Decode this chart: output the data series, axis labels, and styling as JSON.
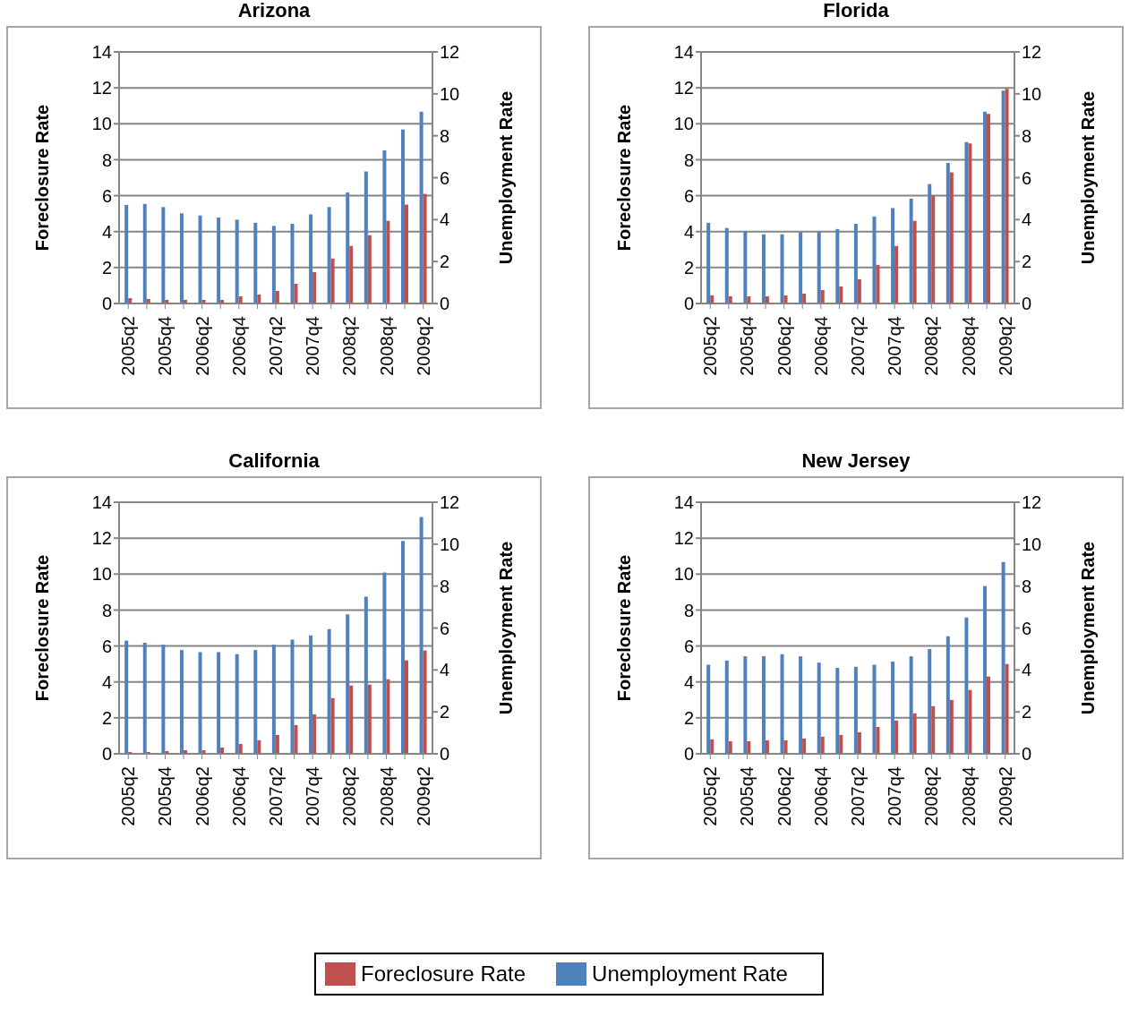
{
  "chart_data": [
    {
      "type": "bar",
      "title": "Arizona",
      "xlabel": null,
      "ylabel": "Foreclosure Rate",
      "y2label": "Unemployment Rate",
      "categories": [
        "2005q2",
        null,
        "2005q4",
        null,
        "2006q2",
        null,
        "2006q4",
        null,
        "2007q2",
        null,
        "2007q4",
        null,
        "2008q2",
        null,
        "2008q4",
        null,
        "2009q2"
      ],
      "ylim": [
        0,
        14
      ],
      "yticks": [
        0,
        2,
        4,
        6,
        8,
        10,
        12,
        14
      ],
      "y2lim": [
        0,
        12
      ],
      "y2ticks": [
        0,
        2,
        4,
        6,
        8,
        10,
        12
      ],
      "grid": "y",
      "legend": "bottom",
      "series": [
        {
          "name": "Foreclosure Rate",
          "color": "#c0504d",
          "values": [
            0.3,
            0.25,
            0.2,
            0.2,
            0.2,
            0.2,
            0.4,
            0.5,
            0.7,
            1.1,
            1.75,
            2.5,
            3.2,
            3.8,
            4.6,
            5.5,
            6.1
          ]
        },
        {
          "name": "Unemployment Rate",
          "color": "#4f81bd",
          "axis": "y2",
          "values": [
            4.7,
            4.75,
            4.6,
            4.3,
            4.2,
            4.1,
            4.0,
            3.85,
            3.7,
            3.8,
            4.25,
            4.6,
            5.3,
            6.3,
            7.3,
            8.3,
            9.15
          ]
        }
      ]
    },
    {
      "type": "bar",
      "title": "Florida",
      "ylabel": "Foreclosure Rate",
      "y2label": "Unemployment Rate",
      "categories": [
        "2005q2",
        null,
        "2005q4",
        null,
        "2006q2",
        null,
        "2006q4",
        null,
        "2007q2",
        null,
        "2007q4",
        null,
        "2008q2",
        null,
        "2008q4",
        null,
        "2009q2"
      ],
      "ylim": [
        0,
        14
      ],
      "yticks": [
        0,
        2,
        4,
        6,
        8,
        10,
        12,
        14
      ],
      "y2lim": [
        0,
        12
      ],
      "y2ticks": [
        0,
        2,
        4,
        6,
        8,
        10,
        12
      ],
      "grid": "y",
      "series": [
        {
          "color": "#c0504d",
          "values": [
            0.45,
            0.4,
            0.4,
            0.4,
            0.45,
            0.55,
            0.75,
            0.95,
            1.35,
            2.15,
            3.2,
            4.6,
            6.0,
            7.3,
            8.9,
            10.55,
            11.95
          ]
        },
        {
          "color": "#4f81bd",
          "axis": "y2",
          "values": [
            3.85,
            3.6,
            3.45,
            3.3,
            3.3,
            3.4,
            3.45,
            3.55,
            3.8,
            4.15,
            4.55,
            5.0,
            5.7,
            6.7,
            7.7,
            9.15,
            10.15
          ]
        }
      ]
    },
    {
      "type": "bar",
      "title": "California",
      "ylabel": "Foreclosure Rate",
      "y2label": "Unemployment Rate",
      "categories": [
        "2005q2",
        null,
        "2005q4",
        null,
        "2006q2",
        null,
        "2006q4",
        null,
        "2007q2",
        null,
        "2007q4",
        null,
        "2008q2",
        null,
        "2008q4",
        null,
        "2009q2"
      ],
      "ylim": [
        0,
        14
      ],
      "yticks": [
        0,
        2,
        4,
        6,
        8,
        10,
        12,
        14
      ],
      "y2lim": [
        0,
        12
      ],
      "y2ticks": [
        0,
        2,
        4,
        6,
        8,
        10,
        12
      ],
      "grid": "y",
      "series": [
        {
          "color": "#c0504d",
          "values": [
            0.1,
            0.1,
            0.15,
            0.2,
            0.2,
            0.35,
            0.55,
            0.75,
            1.05,
            1.6,
            2.2,
            3.1,
            3.8,
            3.85,
            4.15,
            5.2,
            5.75
          ]
        },
        {
          "color": "#4f81bd",
          "axis": "y2",
          "values": [
            5.4,
            5.3,
            5.2,
            4.95,
            4.85,
            4.85,
            4.75,
            4.95,
            5.2,
            5.45,
            5.65,
            5.95,
            6.65,
            7.5,
            8.65,
            10.15,
            11.3
          ]
        }
      ]
    },
    {
      "type": "bar",
      "title": "New Jersey",
      "ylabel": "Foreclosure Rate",
      "y2label": "Unemployment Rate",
      "categories": [
        "2005q2",
        null,
        "2005q4",
        null,
        "2006q2",
        null,
        "2006q4",
        null,
        "2007q2",
        null,
        "2007q4",
        null,
        "2008q2",
        null,
        "2008q4",
        null,
        "2009q2"
      ],
      "ylim": [
        0,
        14
      ],
      "yticks": [
        0,
        2,
        4,
        6,
        8,
        10,
        12,
        14
      ],
      "y2lim": [
        0,
        12
      ],
      "y2ticks": [
        0,
        2,
        4,
        6,
        8,
        10,
        12
      ],
      "grid": "y",
      "series": [
        {
          "color": "#c0504d",
          "values": [
            0.8,
            0.7,
            0.7,
            0.75,
            0.75,
            0.85,
            0.95,
            1.05,
            1.2,
            1.5,
            1.85,
            2.25,
            2.65,
            3.0,
            3.55,
            4.3,
            5.0
          ]
        },
        {
          "color": "#4f81bd",
          "axis": "y2",
          "values": [
            4.25,
            4.45,
            4.65,
            4.65,
            4.75,
            4.65,
            4.35,
            4.1,
            4.15,
            4.25,
            4.4,
            4.65,
            5.0,
            5.6,
            6.5,
            8.0,
            9.15
          ]
        }
      ]
    }
  ]
}
